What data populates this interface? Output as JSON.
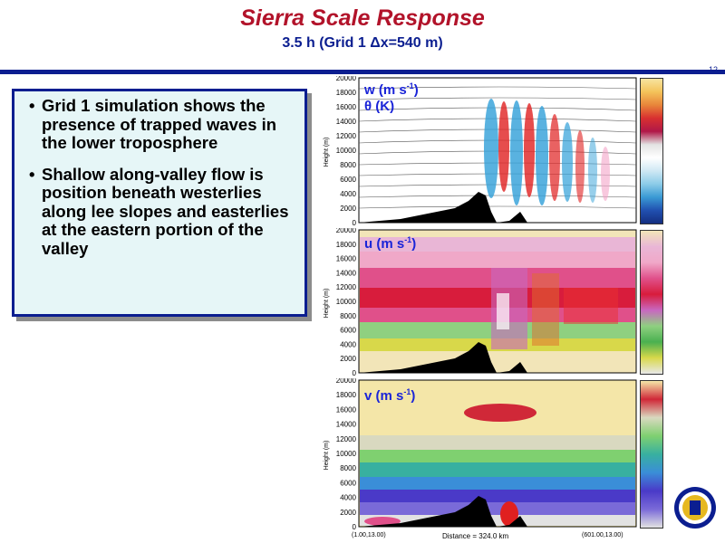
{
  "slide": {
    "title": "Sierra Scale Response",
    "subtitle": "3.5 h (Grid 1 Δx=540 m)",
    "slide_number": "12"
  },
  "bullets": [
    "Grid 1 simulation shows the presence of trapped waves in the lower troposphere",
    "Shallow along-valley flow is position beneath westerlies along lee slopes and easterlies at the eastern portion of the valley"
  ],
  "panels": [
    {
      "label_main": "w (m s",
      "label_sup": "-1",
      "label_end": ")",
      "label2": "θ (K)"
    },
    {
      "label_main": "u (m s",
      "label_sup": "-1",
      "label_end": ")",
      "label2": ""
    },
    {
      "label_main": "v (m s",
      "label_sup": "-1",
      "label_end": ")",
      "label2": ""
    }
  ],
  "y_axis_label": "Height (m)",
  "y_ticks": [
    "20000",
    "18000",
    "16000",
    "14000",
    "12000",
    "10000",
    "8000",
    "6000",
    "4000",
    "2000",
    "0"
  ],
  "footer": {
    "left": "(1.00,13.00)",
    "center": "Distance = 324.0 km",
    "right": "(601.00,13.00)"
  },
  "colors": {
    "title": "#b2132a",
    "subtitle": "#0b1e90",
    "panel_label": "#1a24d8",
    "box_fill": "#e6f6f7"
  }
}
